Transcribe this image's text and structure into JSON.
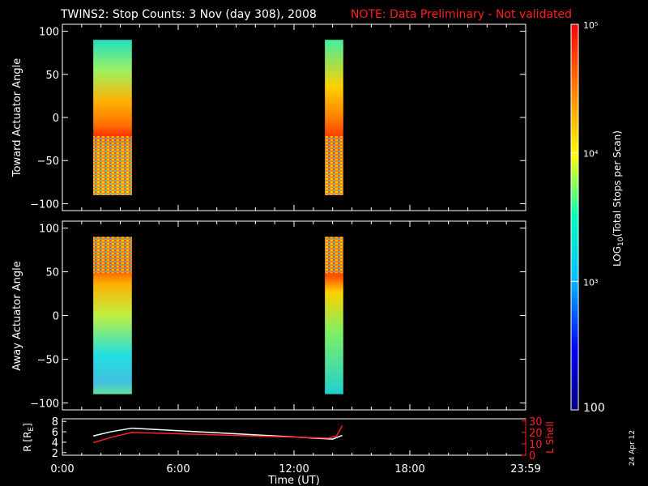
{
  "header": {
    "title": "TWINS2: Stop Counts:  3 Nov (day 308), 2008",
    "note": "NOTE: Data Preliminary - Not validated"
  },
  "colorbar": {
    "label": "LOG10(Total Stops per Scan)",
    "label_main": "LOG",
    "label_sub": "10",
    "label_rest": "(Total Stops per Scan)",
    "range": [
      100,
      100000
    ],
    "scale": "log",
    "ticks": [
      {
        "value": 100,
        "text": "100"
      },
      {
        "value": 1000,
        "text": "10³"
      },
      {
        "value": 10000,
        "text": "10⁴"
      },
      {
        "value": 100000,
        "text": "10⁵"
      }
    ],
    "colormap": [
      "#000080",
      "#0000ff",
      "#00bfff",
      "#00ffbf",
      "#ffff00",
      "#ff8000",
      "#ff0000"
    ]
  },
  "footer": {
    "date_stamp": "24 Apr 12"
  },
  "chart_data": [
    {
      "type": "heatmap",
      "panel": "top",
      "ylabel": "Toward Actuator Angle",
      "xlim": [
        0,
        24
      ],
      "ylim": [
        -108,
        108
      ],
      "yticks": [
        {
          "value": 100,
          "text": "100"
        },
        {
          "value": 50,
          "text": "50"
        },
        {
          "value": 0,
          "text": "0"
        },
        {
          "value": -50,
          "text": "−50"
        },
        {
          "value": -100,
          "text": "−100"
        }
      ],
      "data_range_y": [
        -90,
        90
      ],
      "time_blocks": [
        {
          "start": 1.6,
          "end": 3.6
        },
        {
          "start": 13.6,
          "end": 14.55
        }
      ]
    },
    {
      "type": "heatmap",
      "panel": "middle",
      "ylabel": "Away Actuator Angle",
      "xlim": [
        0,
        24
      ],
      "ylim": [
        -108,
        108
      ],
      "yticks": [
        {
          "value": 100,
          "text": "100"
        },
        {
          "value": 50,
          "text": "50"
        },
        {
          "value": 0,
          "text": "0"
        },
        {
          "value": -50,
          "text": "−50"
        },
        {
          "value": -100,
          "text": "−100"
        }
      ],
      "data_range_y": [
        -90,
        90
      ],
      "time_blocks": [
        {
          "start": 1.6,
          "end": 3.6
        },
        {
          "start": 13.6,
          "end": 14.55
        }
      ]
    },
    {
      "type": "line",
      "panel": "bottom",
      "xlabel": "Time (UT)",
      "xlim": [
        0,
        24
      ],
      "xticks": [
        {
          "value": 0,
          "text": "0:00"
        },
        {
          "value": 6,
          "text": "6:00"
        },
        {
          "value": 12,
          "text": "12:00"
        },
        {
          "value": 18,
          "text": "18:00"
        },
        {
          "value": 24,
          "text": "23:59"
        }
      ],
      "left_axis": {
        "label_main": "R [R",
        "label_sub": "E",
        "label_end": "]",
        "ylim": [
          1.5,
          8.5
        ],
        "ticks": [
          {
            "value": 2,
            "text": "2"
          },
          {
            "value": 4,
            "text": "4"
          },
          {
            "value": 6,
            "text": "6"
          },
          {
            "value": 8,
            "text": "8"
          }
        ]
      },
      "right_axis": {
        "label": "L Shell",
        "ylim": [
          0,
          32
        ],
        "ticks": [
          {
            "value": 0,
            "text": "0"
          },
          {
            "value": 10,
            "text": "10"
          },
          {
            "value": 20,
            "text": "20"
          },
          {
            "value": 30,
            "text": "30"
          }
        ]
      },
      "series": [
        {
          "color": "#ffffff",
          "axis": "left",
          "x": [
            1.6,
            2.5,
            3.6,
            14.0,
            14.5
          ],
          "y": [
            5.2,
            6.0,
            6.7,
            4.6,
            5.3
          ]
        },
        {
          "color": "#ff2020",
          "axis": "right",
          "x": [
            1.6,
            2.5,
            3.6,
            13.8,
            14.2,
            14.5
          ],
          "y": [
            11.0,
            15.5,
            20.0,
            15.0,
            17.0,
            26.0
          ]
        }
      ]
    }
  ]
}
